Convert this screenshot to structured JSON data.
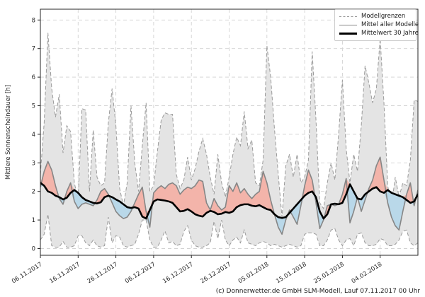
{
  "caption": "(c) Donnerwetter.de GmbH SLM-Modell, Lauf 07.11.2017 00 Uhr",
  "legend": {
    "entries": [
      {
        "label": "Modellgrenzen",
        "style": "dashed-gray"
      },
      {
        "label": "Mittel aller Modelle",
        "style": "solid-gray"
      },
      {
        "label": "Mittelwert 30 Jahre",
        "style": "thick-black"
      }
    ]
  },
  "chart_data": {
    "type": "line",
    "title": "",
    "xlabel": "",
    "ylabel": "Mittlere Sonnenscheindauer [h]",
    "grid": true,
    "legend_position": "top-right",
    "ylim": [
      -0.24,
      8.38
    ],
    "yticks": [
      0,
      1,
      2,
      3,
      4,
      5,
      6,
      7,
      8
    ],
    "x_range_days": [
      0,
      100
    ],
    "x_tick_days": [
      0,
      10,
      20,
      30,
      40,
      50,
      60,
      70,
      80,
      90
    ],
    "x_tick_labels": [
      "06.11.2017",
      "16.11.2017",
      "26.11.2017",
      "06.12.2017",
      "16.12.2017",
      "26.12.2017",
      "05.01.2018",
      "15.01.2018",
      "25.01.2018",
      "04.02.2018"
    ],
    "colors": {
      "band_fill": "#e4e4e4",
      "bound_line": "#9a9a9a",
      "mean_line": "#868686",
      "clim_line": "#000000",
      "above_fill": "#f3b4aa",
      "below_fill": "#b9d8e9",
      "grid_line": "#d2d2d2",
      "frame": "#262626"
    },
    "series": [
      {
        "name": "Modellgrenzen oben",
        "role": "upper_bound",
        "values": [
          2.6,
          4.4,
          7.55,
          5.6,
          4.6,
          5.4,
          3.35,
          4.3,
          4.1,
          2.3,
          1.7,
          4.9,
          4.85,
          2.0,
          4.15,
          2.5,
          2.2,
          2.3,
          4.4,
          5.6,
          4.3,
          2.1,
          1.5,
          2.3,
          5.0,
          3.0,
          2.0,
          3.6,
          5.1,
          2.0,
          2.2,
          3.4,
          4.5,
          4.75,
          4.7,
          4.7,
          2.6,
          2.1,
          2.4,
          3.2,
          2.4,
          2.8,
          3.4,
          3.85,
          3.3,
          2.5,
          1.9,
          3.3,
          2.3,
          1.8,
          2.5,
          3.3,
          3.9,
          3.6,
          4.8,
          3.5,
          3.8,
          2.3,
          2.2,
          3.1,
          7.1,
          6.0,
          4.2,
          2.6,
          1.1,
          2.9,
          3.3,
          2.5,
          3.3,
          2.3,
          2.5,
          3.1,
          6.9,
          4.5,
          1.6,
          1.4,
          2.3,
          3.0,
          2.4,
          4.0,
          5.9,
          3.5,
          2.3,
          3.3,
          2.7,
          4.3,
          6.4,
          5.8,
          5.1,
          5.6,
          7.35,
          5.1,
          2.2,
          1.5,
          2.5,
          1.8,
          2.3,
          2.2,
          3.1,
          5.2,
          5.15
        ]
      },
      {
        "name": "Modellgrenzen unten",
        "role": "lower_bound",
        "values": [
          0.3,
          0.5,
          1.2,
          0.1,
          0.05,
          0.05,
          0.25,
          0.05,
          0.05,
          0.1,
          0.45,
          0.45,
          0.2,
          0.1,
          0.3,
          0.1,
          0.05,
          0.1,
          1.1,
          0.2,
          0.45,
          0.4,
          0.1,
          0.05,
          0.1,
          0.15,
          0.5,
          1.0,
          1.0,
          0.3,
          0.05,
          0.05,
          0.3,
          0.62,
          0.2,
          0.25,
          0.1,
          0.15,
          0.6,
          0.8,
          0.3,
          0.1,
          0.05,
          0.05,
          0.1,
          0.2,
          0.95,
          0.35,
          1.0,
          0.3,
          0.1,
          0.3,
          0.4,
          0.2,
          0.65,
          0.2,
          0.15,
          0.1,
          0.2,
          0.25,
          0.2,
          0.1,
          0.15,
          0.1,
          0.05,
          0.1,
          0.15,
          0.1,
          0.05,
          0.1,
          0.5,
          0.55,
          0.55,
          0.5,
          0.1,
          0.1,
          0.3,
          0.65,
          0.7,
          0.3,
          0.1,
          0.3,
          0.35,
          0.1,
          0.5,
          0.55,
          0.2,
          0.1,
          0.1,
          0.15,
          0.35,
          0.3,
          0.1,
          0.1,
          0.15,
          0.3,
          0.6,
          0.65,
          0.2,
          0.1,
          0.2
        ]
      },
      {
        "name": "Mittel aller Modelle",
        "role": "mean",
        "values": [
          2.15,
          2.7,
          3.05,
          2.75,
          2.2,
          1.75,
          1.55,
          2.0,
          2.3,
          1.65,
          1.4,
          1.55,
          1.6,
          1.55,
          1.5,
          1.7,
          2.0,
          2.1,
          1.9,
          1.6,
          1.3,
          1.15,
          1.05,
          1.1,
          1.3,
          1.6,
          1.9,
          2.15,
          1.3,
          0.75,
          1.95,
          2.1,
          2.2,
          2.1,
          2.25,
          2.3,
          2.2,
          1.9,
          2.05,
          2.15,
          2.1,
          2.2,
          2.4,
          2.35,
          1.6,
          1.35,
          1.75,
          1.5,
          1.35,
          1.45,
          2.2,
          2.0,
          2.3,
          1.95,
          2.1,
          1.9,
          1.75,
          1.9,
          2.0,
          2.7,
          2.3,
          1.7,
          1.2,
          0.75,
          0.5,
          1.0,
          1.35,
          1.1,
          0.85,
          1.5,
          2.2,
          2.75,
          2.4,
          1.6,
          0.7,
          1.0,
          1.5,
          1.55,
          1.5,
          1.55,
          1.9,
          2.45,
          0.9,
          1.3,
          1.8,
          1.3,
          1.7,
          2.1,
          2.4,
          2.9,
          3.2,
          2.4,
          1.6,
          1.1,
          0.8,
          0.65,
          1.3,
          1.9,
          2.3,
          1.5,
          2.05
        ]
      },
      {
        "name": "Mittelwert 30 Jahre",
        "role": "climate_mean",
        "values": [
          2.3,
          2.2,
          2.0,
          1.95,
          1.85,
          1.8,
          1.72,
          1.78,
          1.95,
          2.05,
          1.95,
          1.8,
          1.7,
          1.65,
          1.6,
          1.58,
          1.62,
          1.8,
          1.85,
          1.8,
          1.72,
          1.65,
          1.55,
          1.45,
          1.42,
          1.45,
          1.4,
          1.12,
          1.05,
          1.35,
          1.65,
          1.72,
          1.7,
          1.68,
          1.65,
          1.6,
          1.45,
          1.3,
          1.32,
          1.38,
          1.3,
          1.2,
          1.15,
          1.12,
          1.25,
          1.32,
          1.28,
          1.2,
          1.22,
          1.28,
          1.25,
          1.3,
          1.45,
          1.52,
          1.55,
          1.55,
          1.5,
          1.48,
          1.52,
          1.45,
          1.38,
          1.35,
          1.2,
          1.1,
          1.07,
          1.1,
          1.25,
          1.4,
          1.55,
          1.7,
          1.85,
          1.95,
          2.0,
          1.8,
          1.3,
          1.05,
          1.2,
          1.55,
          1.57,
          1.55,
          1.6,
          1.9,
          2.25,
          2.0,
          1.75,
          1.72,
          1.9,
          2.0,
          2.1,
          2.15,
          2.0,
          1.95,
          2.05,
          1.95,
          1.9,
          1.85,
          1.8,
          1.7,
          1.6,
          1.65,
          1.9
        ]
      }
    ]
  }
}
